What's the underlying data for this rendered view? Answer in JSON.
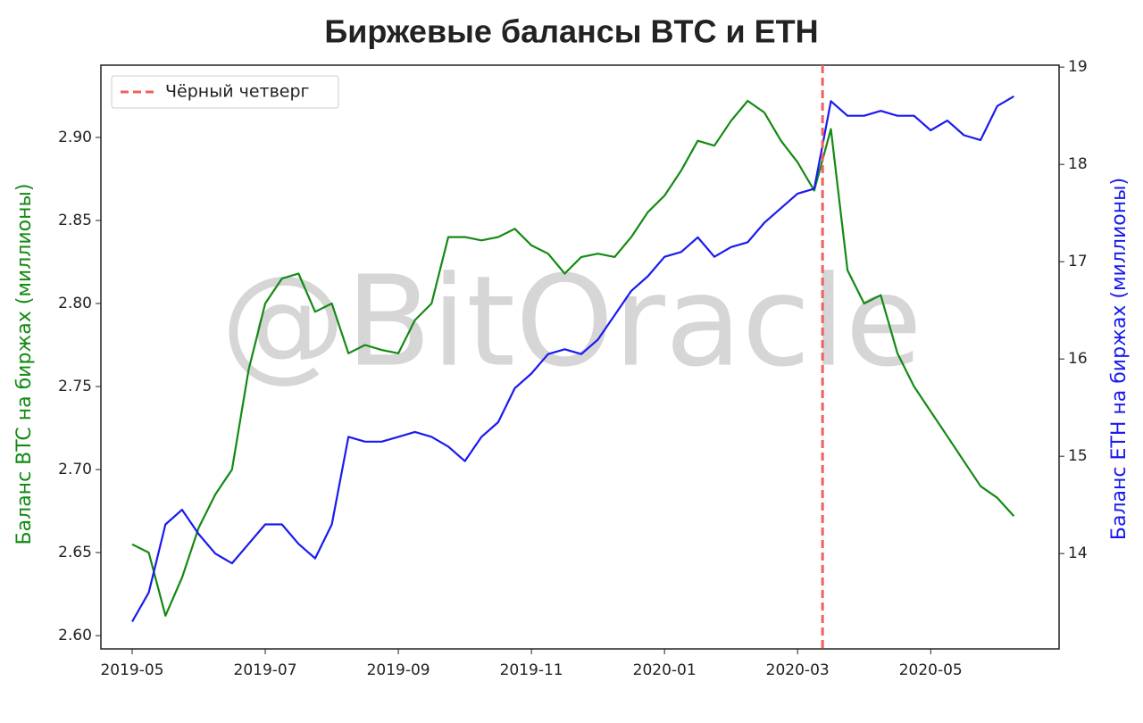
{
  "chart_data": {
    "type": "line",
    "title": "Биржевые балансы BTC и ETH",
    "watermark": "@BitOracle",
    "ylabel": "Баланс BTC на биржах (миллионы)",
    "y2label": "Баланс ETH на биржах (миллионы)",
    "categories": [
      "2019-05",
      null,
      null,
      null,
      null,
      null,
      null,
      null,
      "2019-07",
      null,
      null,
      null,
      null,
      null,
      null,
      null,
      "2019-09",
      null,
      null,
      null,
      null,
      null,
      null,
      null,
      "2019-11",
      null,
      null,
      null,
      null,
      null,
      null,
      null,
      "2020-01",
      null,
      null,
      null,
      null,
      null,
      null,
      null,
      "2020-03",
      null,
      null,
      null,
      null,
      null,
      null,
      null,
      "2020-05",
      null,
      null,
      null,
      null,
      null
    ],
    "series": [
      {
        "color": "#138a13",
        "axis": "y",
        "values": [
          2.655,
          2.65,
          2.612,
          2.635,
          2.665,
          2.685,
          2.7,
          2.76,
          2.8,
          2.815,
          2.818,
          2.795,
          2.8,
          2.77,
          2.775,
          2.772,
          2.77,
          2.79,
          2.8,
          2.84,
          2.84,
          2.838,
          2.84,
          2.845,
          2.835,
          2.83,
          2.818,
          2.828,
          2.83,
          2.828,
          2.84,
          2.855,
          2.865,
          2.88,
          2.898,
          2.895,
          2.91,
          2.922,
          2.915,
          2.898,
          2.885,
          2.868,
          2.905,
          2.82,
          2.8,
          2.805,
          2.77,
          2.75,
          2.735,
          2.72,
          2.705,
          2.69,
          2.683,
          2.672
        ]
      },
      {
        "color": "#1a1af0",
        "axis": "y2",
        "values": [
          13.3,
          13.6,
          14.3,
          14.45,
          14.2,
          14.0,
          13.9,
          14.1,
          14.3,
          14.3,
          14.1,
          13.95,
          14.3,
          15.2,
          15.15,
          15.15,
          15.2,
          15.25,
          15.2,
          15.1,
          14.95,
          15.2,
          15.35,
          15.7,
          15.85,
          16.05,
          16.1,
          16.05,
          16.2,
          16.45,
          16.7,
          16.85,
          17.05,
          17.1,
          17.25,
          17.05,
          17.15,
          17.2,
          17.4,
          17.55,
          17.7,
          17.75,
          18.65,
          18.5,
          18.5,
          18.55,
          18.5,
          18.5,
          18.35,
          18.45,
          18.3,
          18.25,
          18.6,
          18.7
        ]
      }
    ],
    "vline": {
      "at": 41.5,
      "label": "Чёрный четверг",
      "color": "#f06060"
    },
    "legend": "upper left",
    "ylim": [
      2.592,
      2.9435
    ],
    "yticks": [
      {
        "value": 2.6,
        "label": "2.60"
      },
      {
        "value": 2.65,
        "label": "2.65"
      },
      {
        "value": 2.7,
        "label": "2.70"
      },
      {
        "value": 2.75,
        "label": "2.75"
      },
      {
        "value": 2.8,
        "label": "2.80"
      },
      {
        "value": 2.85,
        "label": "2.85"
      },
      {
        "value": 2.9,
        "label": "2.90"
      }
    ],
    "y2lim": [
      13.02,
      19.02
    ],
    "y2ticks": [
      14,
      15,
      16,
      17,
      18,
      19
    ]
  }
}
